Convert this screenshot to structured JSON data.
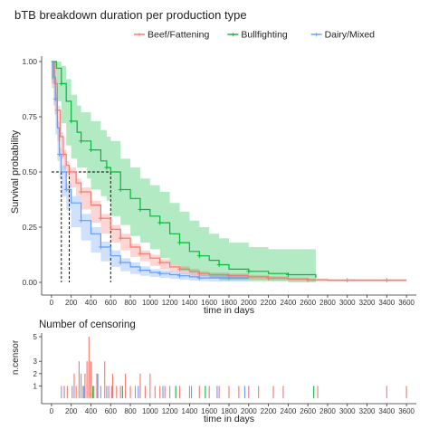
{
  "chart_data": [
    {
      "type": "line",
      "subtype": "kaplan-meier survival",
      "title": "bTB breakdown duration per production type",
      "xlabel": "time in days",
      "ylabel": "Survival probability",
      "xlim": [
        -100,
        3700
      ],
      "ylim": [
        0,
        1
      ],
      "x_ticks": [
        0,
        200,
        400,
        600,
        800,
        1000,
        1200,
        1400,
        1600,
        1800,
        2000,
        2200,
        2400,
        2600,
        2800,
        3000,
        3200,
        3400,
        3600
      ],
      "y_ticks": [
        0.0,
        0.25,
        0.5,
        0.75,
        1.0
      ],
      "y_tick_labels": [
        "0.00",
        "0.25",
        "0.50",
        "0.75",
        "1.00"
      ],
      "legend_position": "top",
      "grid": false,
      "median_lines": [
        {
          "series": "Dairy/Mixed",
          "x": 100,
          "y": 0.5
        },
        {
          "series": "Beef/Fattening",
          "x": 180,
          "y": 0.5
        },
        {
          "series": "Bullfighting",
          "x": 600,
          "y": 0.5
        }
      ],
      "series": [
        {
          "name": "Beef/Fattening",
          "color": "#F8766D",
          "x": [
            0,
            30,
            60,
            90,
            120,
            150,
            180,
            250,
            300,
            400,
            500,
            600,
            700,
            800,
            900,
            1000,
            1100,
            1200,
            1300,
            1400,
            1500,
            1600,
            1800,
            2000,
            2200,
            2400,
            2600,
            2800,
            3000,
            3200,
            3400,
            3600
          ],
          "y": [
            1.0,
            0.9,
            0.78,
            0.66,
            0.58,
            0.53,
            0.5,
            0.45,
            0.41,
            0.35,
            0.29,
            0.24,
            0.2,
            0.16,
            0.13,
            0.11,
            0.09,
            0.07,
            0.06,
            0.05,
            0.04,
            0.035,
            0.03,
            0.025,
            0.02,
            0.015,
            0.012,
            0.01,
            0.01,
            0.01,
            0.01,
            0.01
          ],
          "lower": [
            1.0,
            0.88,
            0.76,
            0.64,
            0.56,
            0.51,
            0.48,
            0.43,
            0.39,
            0.33,
            0.27,
            0.22,
            0.18,
            0.145,
            0.115,
            0.095,
            0.075,
            0.058,
            0.048,
            0.038,
            0.03,
            0.025,
            0.02,
            0.016,
            0.012,
            0.008,
            0.006,
            0.004,
            0.004,
            0.004,
            0.004,
            0.004
          ],
          "upper": [
            1.0,
            0.92,
            0.8,
            0.68,
            0.6,
            0.55,
            0.52,
            0.47,
            0.43,
            0.37,
            0.31,
            0.26,
            0.22,
            0.175,
            0.145,
            0.125,
            0.105,
            0.082,
            0.072,
            0.062,
            0.05,
            0.045,
            0.04,
            0.034,
            0.028,
            0.022,
            0.018,
            0.016,
            0.016,
            0.016,
            0.016,
            0.016
          ]
        },
        {
          "name": "Bullfighting",
          "color": "#00BA38",
          "x": [
            0,
            50,
            100,
            150,
            200,
            260,
            300,
            360,
            400,
            500,
            560,
            600,
            700,
            800,
            900,
            1000,
            1100,
            1200,
            1300,
            1400,
            1500,
            1600,
            1700,
            1800,
            2000,
            2200,
            2400,
            2680
          ],
          "y": [
            1.0,
            0.97,
            0.9,
            0.82,
            0.73,
            0.68,
            0.64,
            0.64,
            0.6,
            0.55,
            0.52,
            0.5,
            0.42,
            0.38,
            0.33,
            0.3,
            0.27,
            0.22,
            0.18,
            0.14,
            0.12,
            0.1,
            0.08,
            0.06,
            0.05,
            0.04,
            0.035,
            0.02
          ],
          "lower": [
            1.0,
            0.92,
            0.82,
            0.72,
            0.62,
            0.56,
            0.52,
            0.52,
            0.47,
            0.42,
            0.39,
            0.37,
            0.3,
            0.26,
            0.21,
            0.18,
            0.15,
            0.11,
            0.08,
            0.05,
            0.04,
            0.03,
            0.02,
            0.01,
            0.01,
            0.005,
            0.005,
            0.0
          ],
          "upper": [
            1.0,
            1.0,
            0.98,
            0.92,
            0.85,
            0.8,
            0.77,
            0.77,
            0.73,
            0.69,
            0.66,
            0.64,
            0.56,
            0.52,
            0.47,
            0.44,
            0.41,
            0.36,
            0.32,
            0.28,
            0.25,
            0.22,
            0.2,
            0.18,
            0.16,
            0.15,
            0.15,
            0.15
          ]
        },
        {
          "name": "Dairy/Mixed",
          "color": "#619CFF",
          "x": [
            0,
            20,
            40,
            60,
            80,
            100,
            150,
            200,
            300,
            400,
            500,
            600,
            700,
            800,
            900,
            1000,
            1100,
            1200,
            1300,
            1400,
            1500,
            1600,
            1800,
            2000
          ],
          "y": [
            1.0,
            0.93,
            0.83,
            0.7,
            0.58,
            0.5,
            0.42,
            0.36,
            0.28,
            0.22,
            0.16,
            0.12,
            0.09,
            0.07,
            0.055,
            0.045,
            0.04,
            0.035,
            0.03,
            0.025,
            0.02,
            0.02,
            0.02,
            0.02
          ],
          "lower": [
            1.0,
            0.9,
            0.8,
            0.67,
            0.55,
            0.47,
            0.39,
            0.33,
            0.25,
            0.19,
            0.135,
            0.095,
            0.07,
            0.05,
            0.038,
            0.03,
            0.025,
            0.02,
            0.016,
            0.012,
            0.008,
            0.006,
            0.004,
            0.004
          ],
          "upper": [
            1.0,
            0.96,
            0.86,
            0.73,
            0.61,
            0.53,
            0.45,
            0.39,
            0.31,
            0.25,
            0.185,
            0.145,
            0.11,
            0.09,
            0.072,
            0.06,
            0.055,
            0.05,
            0.044,
            0.038,
            0.032,
            0.034,
            0.036,
            0.036
          ]
        }
      ]
    },
    {
      "type": "bar",
      "title": "Number of censoring",
      "xlabel": "time in days",
      "ylabel": "n.censor",
      "xlim": [
        -100,
        3700
      ],
      "ylim": [
        0,
        5
      ],
      "x_ticks": [
        0,
        200,
        400,
        600,
        800,
        1000,
        1200,
        1400,
        1600,
        1800,
        2000,
        2200,
        2400,
        2600,
        2800,
        3000,
        3200,
        3400,
        3600
      ],
      "y_ticks": [
        1,
        2,
        3,
        5
      ],
      "series": [
        {
          "name": "Beef/Fattening",
          "color": "#F8766D",
          "x": [
            100,
            160,
            230,
            250,
            280,
            300,
            320,
            340,
            360,
            380,
            400,
            430,
            460,
            500,
            540,
            580,
            620,
            660,
            700,
            750,
            800,
            850,
            900,
            950,
            1000,
            1050,
            1100,
            1150,
            1200,
            1300,
            1400,
            1500,
            1600,
            1700,
            1800,
            1900,
            2000,
            2100,
            2250,
            2350,
            2700,
            3400,
            3600
          ],
          "values": [
            1,
            1,
            2,
            1,
            3,
            2,
            1,
            2,
            3,
            5,
            3,
            1,
            2,
            1,
            3,
            1,
            2,
            1,
            1,
            2,
            1,
            1,
            2,
            1,
            2,
            1,
            1,
            1,
            1,
            1,
            1,
            1,
            1,
            1,
            1,
            1,
            1,
            1,
            1,
            1,
            1,
            1,
            1
          ]
        },
        {
          "name": "Bullfighting",
          "color": "#00BA38",
          "x": [
            420,
            720,
            1260,
            1560,
            2660
          ],
          "values": [
            1,
            1,
            1,
            1,
            1
          ]
        },
        {
          "name": "Dairy/Mixed",
          "color": "#619CFF",
          "x": [
            130,
            210,
            330,
            470,
            560,
            610,
            880,
            1130,
            1420,
            1680,
            1960
          ],
          "values": [
            1,
            1,
            1,
            2,
            1,
            1,
            1,
            1,
            1,
            1,
            1
          ]
        }
      ]
    }
  ]
}
